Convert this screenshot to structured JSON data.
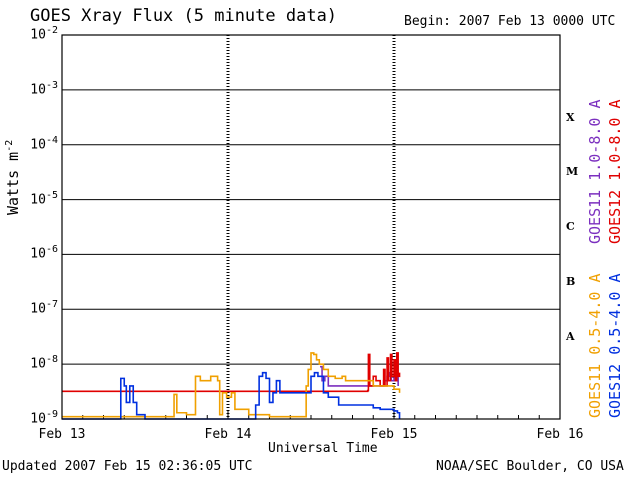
{
  "header": {
    "title": "GOES Xray Flux (5 minute data)",
    "begin": "Begin:  2007 Feb 13 0000 UTC"
  },
  "footer": {
    "updated": "Updated 2007 Feb 15 02:36:05 UTC",
    "credit": "NOAA/SEC Boulder, CO USA"
  },
  "chart_data": {
    "type": "line",
    "title": "GOES Xray Flux (5 minute data)",
    "xlabel": "Universal Time",
    "ylabel": "Watts m",
    "ylabel_sup": "-2",
    "yscale": "log",
    "ylim": [
      1e-09,
      0.01
    ],
    "y_ticks": [
      {
        "base": "10",
        "exp": "-2",
        "value": 0.01
      },
      {
        "base": "10",
        "exp": "-3",
        "value": 0.001
      },
      {
        "base": "10",
        "exp": "-4",
        "value": 0.0001
      },
      {
        "base": "10",
        "exp": "-5",
        "value": 1e-05
      },
      {
        "base": "10",
        "exp": "-6",
        "value": 1e-06
      },
      {
        "base": "10",
        "exp": "-7",
        "value": 1e-07
      },
      {
        "base": "10",
        "exp": "-8",
        "value": 1e-08
      },
      {
        "base": "10",
        "exp": "-9",
        "value": 1e-09
      }
    ],
    "xlim": [
      0,
      72
    ],
    "x_unit": "hours since begin",
    "x_ticks": [
      {
        "label": "Feb 13",
        "value": 0
      },
      {
        "label": "Feb 14",
        "value": 24
      },
      {
        "label": "Feb 15",
        "value": 48
      },
      {
        "label": "Feb 16",
        "value": 72
      }
    ],
    "flare_classes": [
      {
        "label": "X",
        "value": 0.0003
      },
      {
        "label": "M",
        "value": 3e-05
      },
      {
        "label": "C",
        "value": 3e-06
      },
      {
        "label": "B",
        "value": 3e-07
      },
      {
        "label": "A",
        "value": 3e-08
      }
    ],
    "grid": true,
    "series": [
      {
        "name": "GOES11 1.0-8.0 A",
        "color": "#7b2fbf",
        "points": [
          [
            37.3,
            9e-09
          ],
          [
            37.6,
            5e-09
          ],
          [
            38.0,
            6e-09
          ],
          [
            38.5,
            4e-09
          ],
          [
            39.0,
            4e-09
          ],
          [
            40.5,
            4e-09
          ],
          [
            41.5,
            4e-09
          ],
          [
            43.5,
            4e-09
          ],
          [
            44.5,
            4e-09
          ],
          [
            45.5,
            4e-09
          ],
          [
            46.5,
            5e-09
          ],
          [
            47.0,
            6e-09
          ],
          [
            47.3,
            7e-09
          ],
          [
            47.6,
            5e-09
          ],
          [
            48.0,
            6e-09
          ],
          [
            48.6,
            4e-09
          ]
        ]
      },
      {
        "name": "GOES12 1.0-8.0 A",
        "color": "#e00000",
        "points": [
          [
            0,
            3.2e-09
          ],
          [
            10,
            3.2e-09
          ],
          [
            20,
            3.2e-09
          ],
          [
            30,
            3.2e-09
          ],
          [
            36,
            3.2e-09
          ],
          [
            42,
            3.2e-09
          ],
          [
            44.2,
            3.3e-09
          ],
          [
            44.3,
            1.5e-08
          ],
          [
            44.5,
            4e-09
          ],
          [
            45.0,
            6e-09
          ],
          [
            45.4,
            5e-09
          ],
          [
            46.0,
            4e-09
          ],
          [
            46.5,
            8e-09
          ],
          [
            46.7,
            4e-09
          ],
          [
            47.0,
            1.3e-08
          ],
          [
            47.2,
            5e-09
          ],
          [
            47.5,
            1.5e-08
          ],
          [
            47.7,
            6e-09
          ],
          [
            48.0,
            1.2e-08
          ],
          [
            48.2,
            5e-09
          ],
          [
            48.4,
            1.6e-08
          ],
          [
            48.6,
            6e-09
          ],
          [
            48.8,
            7e-09
          ]
        ]
      },
      {
        "name": "GOES11 0.5-4.0 A",
        "color": "#f0a000",
        "points": [
          [
            0,
            1.1e-09
          ],
          [
            8,
            1.1e-09
          ],
          [
            16,
            1.1e-09
          ],
          [
            16.2,
            2.8e-09
          ],
          [
            16.6,
            1.3e-09
          ],
          [
            18.0,
            1.2e-09
          ],
          [
            19.3,
            6e-09
          ],
          [
            20,
            5e-09
          ],
          [
            21.5,
            6e-09
          ],
          [
            22.5,
            5e-09
          ],
          [
            22.8,
            1.2e-09
          ],
          [
            23.2,
            3e-09
          ],
          [
            23.8,
            2.5e-09
          ],
          [
            24.5,
            3e-09
          ],
          [
            25,
            1.5e-09
          ],
          [
            27,
            1.2e-09
          ],
          [
            30,
            1.1e-09
          ],
          [
            35.0,
            1.1e-09
          ],
          [
            35.3,
            4e-09
          ],
          [
            35.6,
            8e-09
          ],
          [
            36.0,
            1.6e-08
          ],
          [
            36.4,
            1.5e-08
          ],
          [
            36.8,
            1.2e-08
          ],
          [
            37.2,
            1e-08
          ],
          [
            37.8,
            8e-09
          ],
          [
            38.5,
            6e-09
          ],
          [
            39.5,
            5.5e-09
          ],
          [
            40.5,
            6e-09
          ],
          [
            41.0,
            5e-09
          ],
          [
            42.0,
            5e-09
          ],
          [
            43.0,
            5e-09
          ],
          [
            44.0,
            5e-09
          ],
          [
            45.0,
            4e-09
          ],
          [
            46.0,
            4e-09
          ],
          [
            47.0,
            4e-09
          ],
          [
            48.0,
            3.5e-09
          ],
          [
            48.8,
            3e-09
          ]
        ]
      },
      {
        "name": "GOES12 0.5-4.0 A",
        "color": "#0030e0",
        "points": [
          [
            0,
            1e-09
          ],
          [
            8.2,
            1e-09
          ],
          [
            8.5,
            5.5e-09
          ],
          [
            9.0,
            4e-09
          ],
          [
            9.3,
            2e-09
          ],
          [
            9.8,
            4e-09
          ],
          [
            10.3,
            2e-09
          ],
          [
            10.8,
            1.2e-09
          ],
          [
            12,
            1e-09
          ],
          [
            20,
            1e-09
          ],
          [
            26,
            1e-09
          ],
          [
            27.5,
            1e-09
          ],
          [
            28.0,
            1.8e-09
          ],
          [
            28.5,
            6e-09
          ],
          [
            29.0,
            7e-09
          ],
          [
            29.5,
            5.5e-09
          ],
          [
            30.0,
            2e-09
          ],
          [
            30.5,
            3e-09
          ],
          [
            31.0,
            5e-09
          ],
          [
            31.5,
            3e-09
          ],
          [
            32.0,
            3e-09
          ],
          [
            33.0,
            3e-09
          ],
          [
            34.0,
            3e-09
          ],
          [
            35.0,
            3e-09
          ],
          [
            36.0,
            6e-09
          ],
          [
            36.5,
            7e-09
          ],
          [
            37.0,
            6e-09
          ],
          [
            37.8,
            3e-09
          ],
          [
            38.5,
            2.5e-09
          ],
          [
            40,
            1.8e-09
          ],
          [
            42.0,
            1.8e-09
          ],
          [
            44.5,
            1.8e-09
          ],
          [
            45.0,
            1.6e-09
          ],
          [
            46.0,
            1.5e-09
          ],
          [
            47.0,
            1.5e-09
          ],
          [
            48.0,
            1.4e-09
          ],
          [
            48.5,
            1.3e-09
          ],
          [
            48.8,
            1e-09
          ]
        ]
      }
    ]
  }
}
